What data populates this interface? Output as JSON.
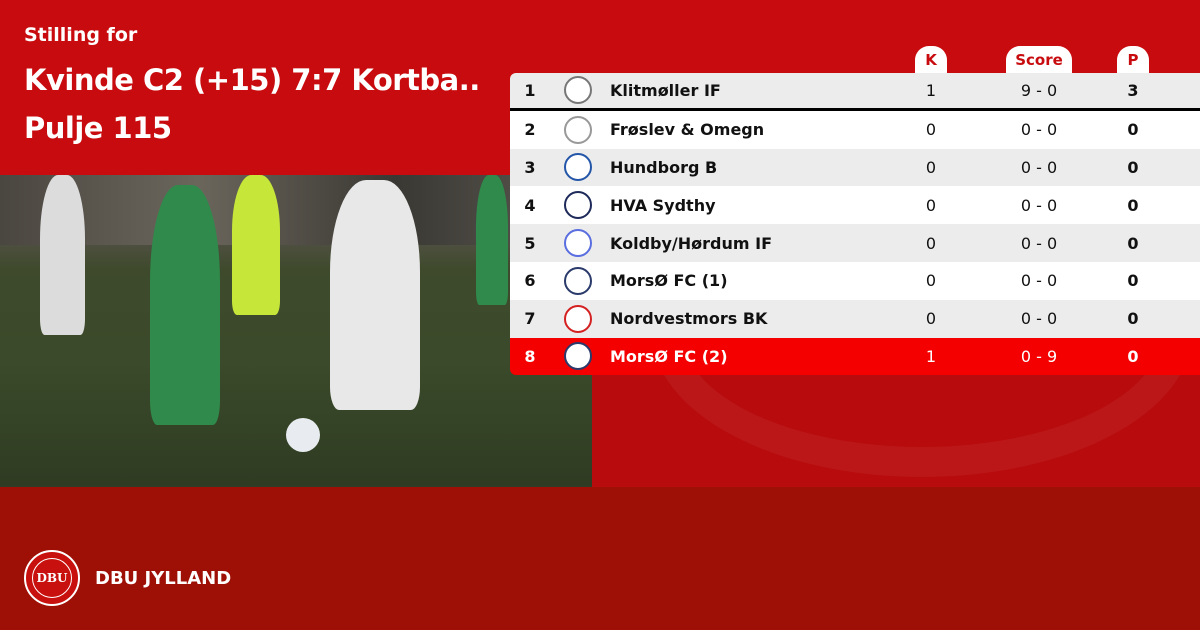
{
  "header": {
    "subtitle": "Stilling for",
    "title_line1": "Kvinde C2 (+15) 7:7 Kortba..",
    "title_line2": "Pulje 115"
  },
  "columns": {
    "k": "K",
    "score": "Score",
    "p": "P"
  },
  "rows": [
    {
      "rank": "1",
      "team": "Klitmøller IF",
      "k": "1",
      "score": "9 - 0",
      "p": "3",
      "crest": "#777777"
    },
    {
      "rank": "2",
      "team": "Frøslev & Omegn",
      "k": "0",
      "score": "0 - 0",
      "p": "0",
      "crest": "#999999"
    },
    {
      "rank": "3",
      "team": "Hundborg B",
      "k": "0",
      "score": "0 - 0",
      "p": "0",
      "crest": "#2356a8"
    },
    {
      "rank": "4",
      "team": "HVA Sydthy",
      "k": "0",
      "score": "0 - 0",
      "p": "0",
      "crest": "#1d2a5a"
    },
    {
      "rank": "5",
      "team": "Koldby/Hørdum IF",
      "k": "0",
      "score": "0 - 0",
      "p": "0",
      "crest": "#5a6ee0"
    },
    {
      "rank": "6",
      "team": "MorsØ FC (1)",
      "k": "0",
      "score": "0 - 0",
      "p": "0",
      "crest": "#2a3a6a"
    },
    {
      "rank": "7",
      "team": "Nordvestmors BK",
      "k": "0",
      "score": "0 - 0",
      "p": "0",
      "crest": "#d42020"
    },
    {
      "rank": "8",
      "team": "MorsØ FC (2)",
      "k": "1",
      "score": "0 - 9",
      "p": "0",
      "crest": "#2a3a6a"
    }
  ],
  "highlight_row": "8",
  "footer": {
    "brand": "DBU JYLLAND",
    "logo_text": "DBU"
  },
  "colors": {
    "primary": "#c80b0e",
    "footer": "#9e0f06",
    "highlight": "#f40000"
  }
}
